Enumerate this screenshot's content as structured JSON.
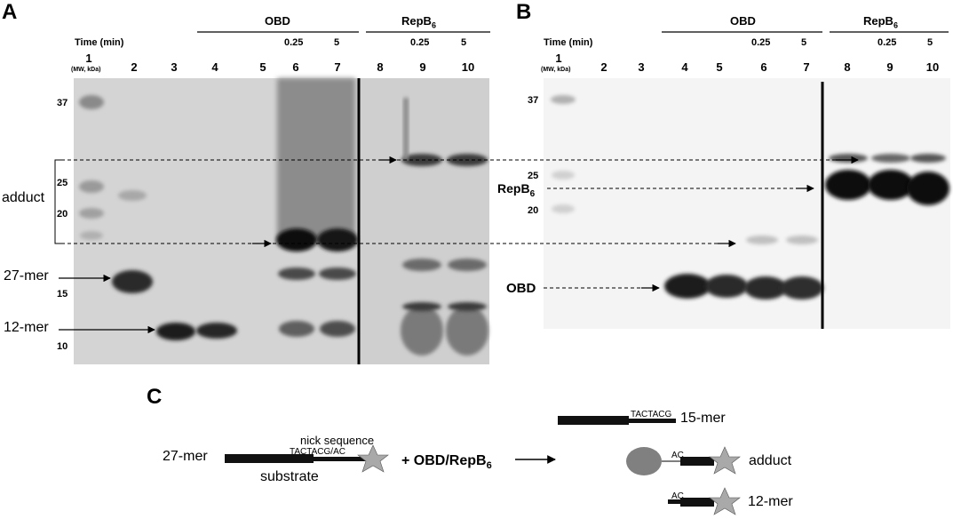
{
  "panel_a": {
    "letter": "A",
    "time_label": "Time (min)",
    "mw_label": "(MW, kDa)",
    "group_obd": "OBD",
    "group_repb": "RepB",
    "group_repb_sub": "6",
    "times_obd": [
      "0.25",
      "5"
    ],
    "times_repb": [
      "0.25",
      "5"
    ],
    "lanes": [
      "1",
      "2",
      "3",
      "4",
      "5",
      "6",
      "7",
      "8",
      "9",
      "10"
    ],
    "markers": [
      "37",
      "25",
      "20",
      "15",
      "10"
    ],
    "left_labels": {
      "adduct": "adduct",
      "mer27": "27-mer",
      "mer12": "12-mer"
    }
  },
  "panel_b": {
    "letter": "B",
    "time_label": "Time (min)",
    "mw_label": "(MW, kDa)",
    "group_obd": "OBD",
    "group_repb": "RepB",
    "group_repb_sub": "6",
    "times_obd": [
      "0.25",
      "5"
    ],
    "times_repb": [
      "0.25",
      "5"
    ],
    "lanes": [
      "1",
      "2",
      "3",
      "4",
      "5",
      "6",
      "7",
      "8",
      "9",
      "10"
    ],
    "markers": [
      "37",
      "25",
      "20"
    ],
    "left_labels": {
      "repb": "RepB",
      "repb_sub": "6",
      "obd": "OBD"
    }
  },
  "panel_c": {
    "letter": "C",
    "substrate_len": "27-mer",
    "nick_label": "nick sequence",
    "nick_seq": "TACTACG/AC",
    "substrate_label": "substrate",
    "enzyme_label": "+ OBD/RepB",
    "enzyme_sub": "6",
    "product_seq": "TACTACG",
    "product_15": "15-mer",
    "adduct_ac": "AC",
    "adduct_label": "adduct",
    "product_12_ac": "AC",
    "product_12": "12-mer"
  },
  "colors": {
    "gel_bg": "#d4d4d4",
    "blot_bg": "#f4f4f4",
    "band_dark": "#1c1c1c",
    "star": "#a9a9a9",
    "protein": "#808080"
  }
}
